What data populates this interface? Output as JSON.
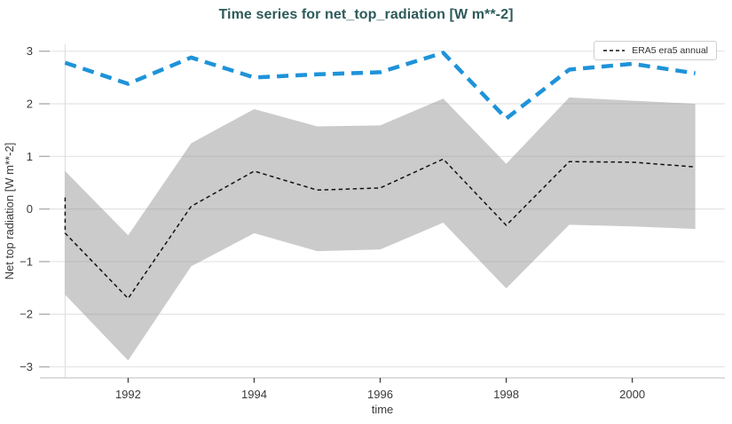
{
  "title": "Time series for net_top_radiation [W m**-2]",
  "legend": {
    "label": "ERA5 era5 annual"
  },
  "colors": {
    "title": "#2d5a5a",
    "era5_line": "#111111",
    "blue_line": "#1e93d9",
    "band_fill": "#8c8c8c",
    "band_opacity": 0.45,
    "grid": "#e4e4e4",
    "axis_line": "#d4d4d4",
    "tick_mark": "#444444",
    "y_tick_mark": "#b0b0b0",
    "tick_text": "#3a3a3a",
    "start_line": "#dedede"
  },
  "chart_data": {
    "type": "line",
    "title": "Time series for net_top_radiation [W m**-2]",
    "xlabel": "time",
    "ylabel": "Net top radiation [W m**-2]",
    "xlim": [
      1990.6,
      2001.47
    ],
    "ylim": [
      -3.21,
      3.13
    ],
    "x_ticks": [
      1992,
      1994,
      1996,
      1998,
      2000
    ],
    "y_ticks": [
      3,
      2,
      1,
      0,
      -1,
      -2,
      -3
    ],
    "grid": "horizontal",
    "legend_position": "top-right",
    "start_year_line": 1991,
    "series": [
      {
        "name": "ERA5 era5 annual",
        "color": "#111111",
        "line_style": "dashed",
        "line_width": 1.5,
        "in_legend": true,
        "points": [
          [
            1991,
            0.22
          ],
          [
            1991,
            -0.46
          ],
          [
            1992,
            -1.7
          ],
          [
            1993,
            0.05
          ],
          [
            1994,
            0.72
          ],
          [
            1995,
            0.36
          ],
          [
            1996,
            0.4
          ],
          [
            1997,
            0.95
          ],
          [
            1998,
            -0.31
          ],
          [
            1999,
            0.9
          ],
          [
            2000,
            0.89
          ],
          [
            2001,
            0.8
          ]
        ]
      },
      {
        "name": "annual series (thick blue dashed, not in legend)",
        "color": "#1e93d9",
        "line_style": "dashed",
        "line_width": 4.5,
        "in_legend": false,
        "points": [
          [
            1991,
            2.78
          ],
          [
            1992,
            2.38
          ],
          [
            1993,
            2.88
          ],
          [
            1994,
            2.5
          ],
          [
            1995,
            2.56
          ],
          [
            1996,
            2.6
          ],
          [
            1997,
            2.97
          ],
          [
            1998,
            1.72
          ],
          [
            1999,
            2.65
          ],
          [
            2000,
            2.76
          ],
          [
            2001,
            2.58
          ]
        ]
      }
    ],
    "band": {
      "name": "uncertainty band",
      "x": [
        1991,
        1992,
        1993,
        1994,
        1995,
        1996,
        1997,
        1998,
        1999,
        2000,
        2001
      ],
      "upper": [
        0.72,
        -0.5,
        1.25,
        1.9,
        1.57,
        1.59,
        2.1,
        0.86,
        2.12,
        2.06,
        2.0
      ],
      "lower": [
        -1.63,
        -2.88,
        -1.09,
        -0.46,
        -0.8,
        -0.77,
        -0.26,
        -1.51,
        -0.3,
        -0.33,
        -0.38
      ]
    }
  }
}
